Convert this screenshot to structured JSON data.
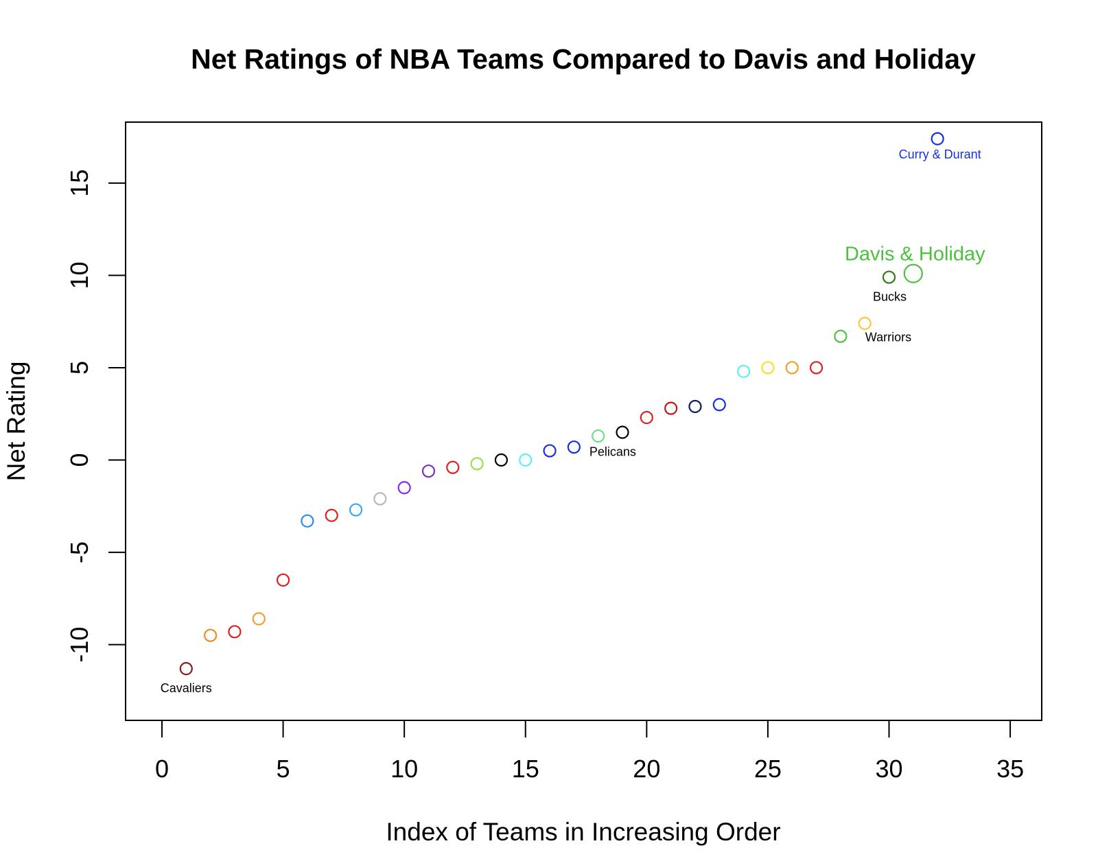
{
  "chart_data": {
    "type": "scatter",
    "title": "Net Ratings of NBA Teams Compared to Davis and Holiday",
    "xlabel": "Index of Teams in Increasing Order",
    "ylabel": "Net Rating",
    "xlim": [
      -1.5,
      36.3
    ],
    "ylim": [
      -14.1,
      18.3
    ],
    "xticks": [
      0,
      5,
      10,
      15,
      20,
      25,
      30,
      35
    ],
    "yticks": [
      -10,
      -5,
      0,
      5,
      10,
      15
    ],
    "grid": false,
    "series": [
      {
        "points": [
          {
            "x": 1,
            "y": -11.3,
            "color": "#8b1a1a"
          },
          {
            "x": 2,
            "y": -9.5,
            "color": "#f28c28"
          },
          {
            "x": 3,
            "y": -9.3,
            "color": "#e02020"
          },
          {
            "x": 4,
            "y": -8.6,
            "color": "#f0a030"
          },
          {
            "x": 5,
            "y": -6.5,
            "color": "#e02020"
          },
          {
            "x": 6,
            "y": -3.3,
            "color": "#2a8cf0"
          },
          {
            "x": 7,
            "y": -3.0,
            "color": "#e02020"
          },
          {
            "x": 8,
            "y": -2.7,
            "color": "#3aa8f0"
          },
          {
            "x": 9,
            "y": -2.1,
            "color": "#b8b8b8"
          },
          {
            "x": 10,
            "y": -1.5,
            "color": "#8a2be2"
          },
          {
            "x": 11,
            "y": -0.6,
            "color": "#7b2fd0"
          },
          {
            "x": 12,
            "y": -0.4,
            "color": "#e02020"
          },
          {
            "x": 13,
            "y": -0.2,
            "color": "#9be04a"
          },
          {
            "x": 14,
            "y": 0.0,
            "color": "#000000"
          },
          {
            "x": 15,
            "y": 0.0,
            "color": "#5ff0f0"
          },
          {
            "x": 16,
            "y": 0.5,
            "color": "#1530e0"
          },
          {
            "x": 17,
            "y": 0.7,
            "color": "#1530e0"
          },
          {
            "x": 18,
            "y": 1.3,
            "color": "#6ee08a"
          },
          {
            "x": 19,
            "y": 1.5,
            "color": "#000000"
          },
          {
            "x": 20,
            "y": 2.3,
            "color": "#e02020"
          },
          {
            "x": 21,
            "y": 2.8,
            "color": "#c01818"
          },
          {
            "x": 22,
            "y": 2.9,
            "color": "#0a1a6b"
          },
          {
            "x": 23,
            "y": 3.0,
            "color": "#1530e0"
          },
          {
            "x": 24,
            "y": 4.8,
            "color": "#5ff0f0"
          },
          {
            "x": 25,
            "y": 5.0,
            "color": "#f5e030"
          },
          {
            "x": 26,
            "y": 5.0,
            "color": "#f0a030"
          },
          {
            "x": 27,
            "y": 5.0,
            "color": "#e02020"
          },
          {
            "x": 28,
            "y": 6.7,
            "color": "#4ec040"
          },
          {
            "x": 29,
            "y": 7.4,
            "color": "#f5c842"
          },
          {
            "x": 30,
            "y": 9.9,
            "color": "#2e7d1a"
          },
          {
            "x": 31,
            "y": 10.1,
            "color": "#4ec040",
            "size": "large"
          },
          {
            "x": 32,
            "y": 17.4,
            "color": "#1530e0"
          }
        ]
      }
    ],
    "annotations": [
      {
        "text": "Cavaliers",
        "x": 1,
        "y": -12.4,
        "color": "#000000",
        "size": "small"
      },
      {
        "text": "Pelicans",
        "x": 18.6,
        "y": 0.4,
        "color": "#000000",
        "size": "small"
      },
      {
        "text": "Warriors",
        "x": 29.97,
        "y": 6.6,
        "color": "#000000",
        "size": "small"
      },
      {
        "text": "Bucks",
        "x": 30.03,
        "y": 8.8,
        "color": "#000000",
        "size": "small"
      },
      {
        "text": "Davis & Holiday",
        "x": 31.07,
        "y": 11.1,
        "color": "#4ec040",
        "size": "large"
      },
      {
        "text": "Curry & Durant",
        "x": 32.1,
        "y": 16.5,
        "color": "#1530e0",
        "size": "small"
      }
    ]
  }
}
